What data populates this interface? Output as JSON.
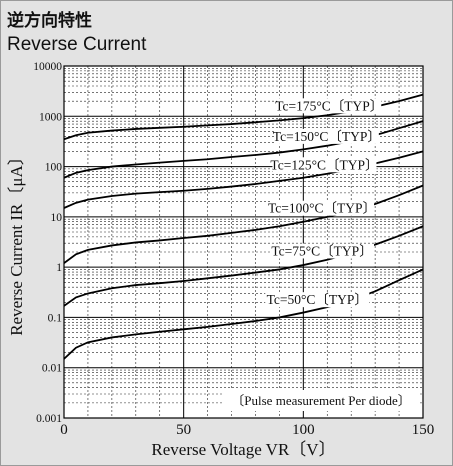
{
  "header": {
    "title_jp": "逆方向特性",
    "title_en": "Reverse Current"
  },
  "chart_data": {
    "type": "line",
    "title": "逆方向特性 Reverse Current",
    "xlabel": "Reverse Voltage VR〔V〕",
    "ylabel": "Reverse Current IR〔μA〕",
    "xlim": [
      0,
      150
    ],
    "ylim": [
      0.001,
      10000
    ],
    "yscale": "log",
    "grid": true,
    "x_ticks": [
      0,
      50,
      100,
      150
    ],
    "x_tick_labels": [
      "0",
      "50",
      "100",
      "150"
    ],
    "y_ticks": [
      0.001,
      0.01,
      0.1,
      1,
      10,
      100,
      1000,
      10000
    ],
    "y_tick_labels": [
      "0.001",
      "0.01",
      "0.1",
      "1",
      "10",
      "100",
      "1000",
      "10000"
    ],
    "annotation": "〔Pulse measurement Per diode〕",
    "x": [
      0,
      5,
      10,
      20,
      30,
      40,
      50,
      60,
      70,
      80,
      90,
      100,
      110,
      120,
      130,
      140,
      150
    ],
    "series": [
      {
        "name": "Tc=175°C〔TYP〕",
        "values": [
          350,
          420,
          470,
          520,
          560,
          590,
          620,
          660,
          700,
          760,
          830,
          920,
          1050,
          1250,
          1550,
          2000,
          2700
        ]
      },
      {
        "name": "Tc=150°C〔TYP〕",
        "values": [
          60,
          75,
          85,
          100,
          110,
          120,
          130,
          140,
          155,
          170,
          190,
          220,
          260,
          320,
          420,
          580,
          800
        ]
      },
      {
        "name": "Tc=125°C〔TYP〕",
        "values": [
          15,
          19,
          22,
          26,
          29,
          31,
          33,
          36,
          40,
          45,
          52,
          60,
          72,
          90,
          115,
          150,
          200
        ]
      },
      {
        "name": "Tc=100°C〔TYP〕",
        "values": [
          1.2,
          1.8,
          2.2,
          2.7,
          3.1,
          3.4,
          3.8,
          4.2,
          4.8,
          5.5,
          6.5,
          8.0,
          10,
          13,
          18,
          27,
          42
        ]
      },
      {
        "name": "Tc=75°C〔TYP〕",
        "values": [
          0.17,
          0.25,
          0.3,
          0.38,
          0.44,
          0.48,
          0.53,
          0.6,
          0.68,
          0.78,
          0.9,
          1.1,
          1.4,
          1.9,
          2.8,
          4.2,
          6.5
        ]
      },
      {
        "name": "Tc=50°C〔TYP〕",
        "values": [
          0.015,
          0.025,
          0.032,
          0.04,
          0.046,
          0.052,
          0.058,
          0.065,
          0.074,
          0.085,
          0.1,
          0.125,
          0.16,
          0.22,
          0.33,
          0.55,
          0.9
        ]
      }
    ],
    "label_positions_x": [
      115,
      114,
      113,
      112,
      112,
      110
    ]
  }
}
